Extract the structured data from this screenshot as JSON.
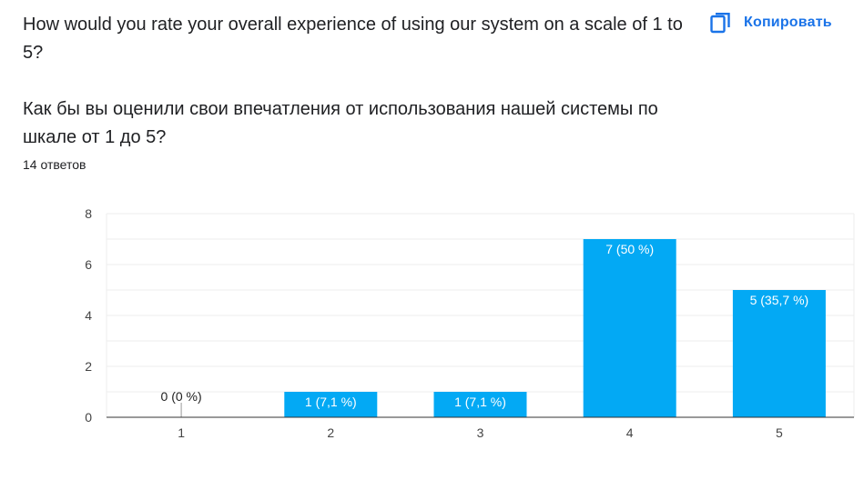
{
  "question": {
    "english": "How would you rate your overall experience of using our system on a scale of 1 to 5?",
    "russian": "Как бы вы оценили свои впечатления от использования нашей системы по шкале от 1 до 5?"
  },
  "responses_count": "14 ответов",
  "copy_button": {
    "label": "Копировать",
    "icon": "copy-icon"
  },
  "colors": {
    "bar": "#03a9f4",
    "accent": "#1a73e8",
    "grid": "#eeeeee",
    "axis": "#333333"
  },
  "chart_data": {
    "type": "bar",
    "categories": [
      "1",
      "2",
      "3",
      "4",
      "5"
    ],
    "values": [
      0,
      1,
      1,
      7,
      5
    ],
    "data_labels": [
      "0 (0 %)",
      "1 (7,1 %)",
      "1 (7,1 %)",
      "7 (50 %)",
      "5 (35,7 %)"
    ],
    "y_ticks": [
      0,
      2,
      4,
      6,
      8
    ],
    "ylim": [
      0,
      8
    ],
    "xlabel": "",
    "ylabel": "",
    "title": "",
    "grid": true
  }
}
